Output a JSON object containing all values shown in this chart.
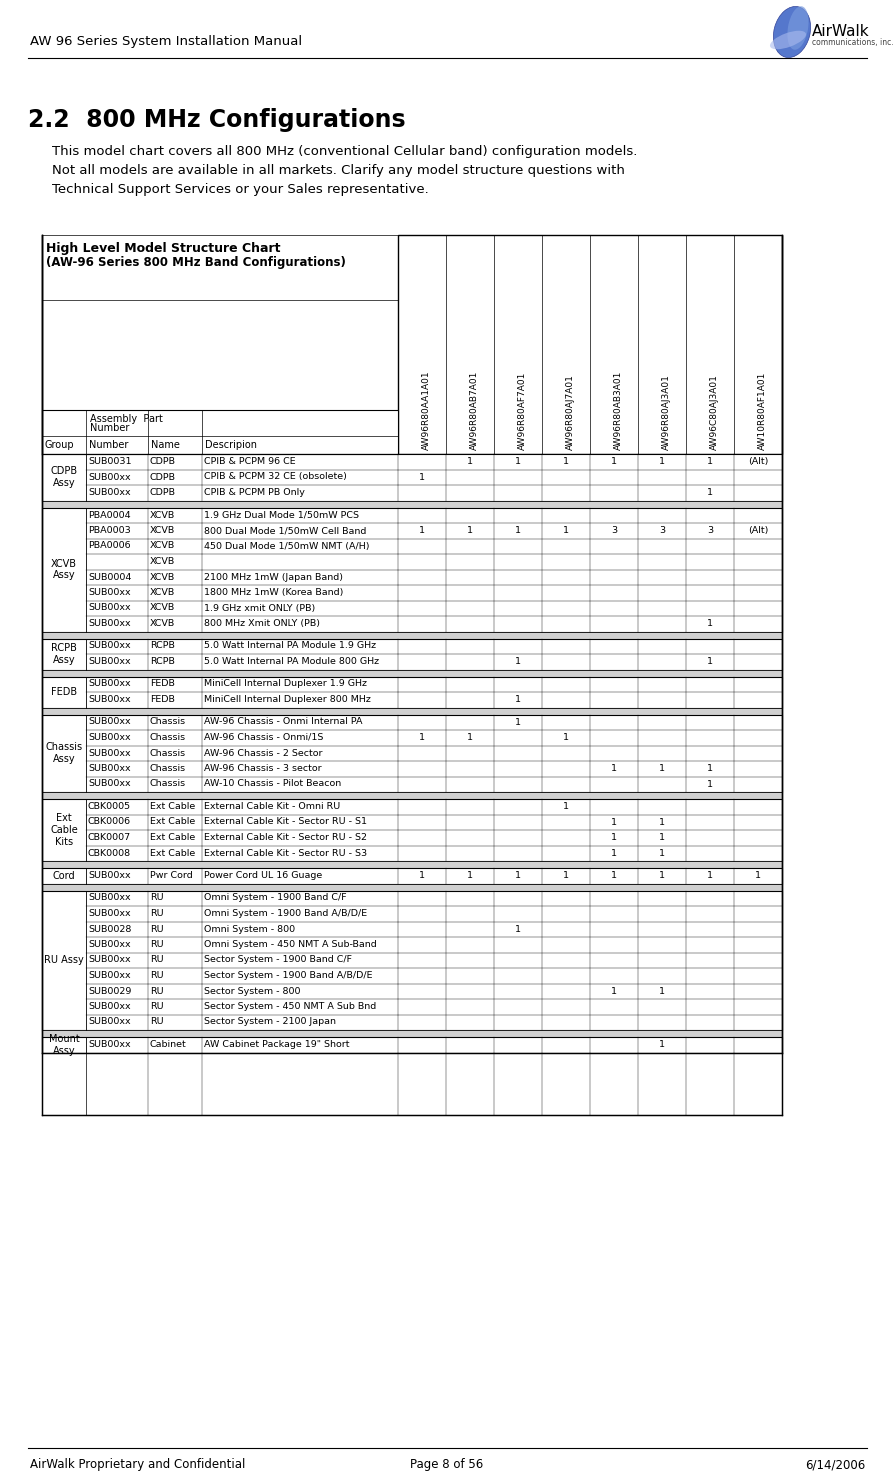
{
  "page_title": "AW 96 Series System Installation Manual",
  "section_title": "2.2  800 MHz Configurations",
  "section_body_lines": [
    "This model chart covers all 800 MHz (conventional Cellular band) configuration models.",
    "Not all models are available in all markets. Clarify any model structure questions with",
    "Technical Support Services or your Sales representative."
  ],
  "chart_title_line1": "High Level Model Structure Chart",
  "chart_title_line2": "(AW-96 Series 800 MHz Band Configurations)",
  "footer_left": "AirWalk Proprietary and Confidential",
  "footer_center": "Page 8 of 56",
  "footer_right": "6/14/2006",
  "model_columns": [
    "AW96R80AA1A01",
    "AW96R80AB7A01",
    "AW96R80AF7A01",
    "AW96R80AJ7A01",
    "AW96R80AB3A01",
    "AW96R80AJ3A01",
    "AW96C80AJ3A01",
    "AW10R80AF1A01"
  ],
  "row_groups": [
    {
      "group": "CDPB\nAssy",
      "rows": [
        {
          "part": "SUB0031",
          "name": "CDPB",
          "desc": "CPIB & PCPM 96 CE",
          "vals": [
            "",
            "1",
            "1",
            "1",
            "1",
            "1",
            "1",
            "(Alt)"
          ]
        },
        {
          "part": "SUB00xx",
          "name": "CDPB",
          "desc": "CPIB & PCPM 32 CE (obsolete)",
          "vals": [
            "1",
            "",
            "",
            "",
            "",
            "",
            "",
            ""
          ]
        },
        {
          "part": "SUB00xx",
          "name": "CDPB",
          "desc": "CPIB & PCPM PB Only",
          "vals": [
            "",
            "",
            "",
            "",
            "",
            "",
            "1",
            ""
          ]
        }
      ]
    },
    {
      "group": "XCVB\nAssy",
      "rows": [
        {
          "part": "PBA0004",
          "name": "XCVB",
          "desc": "1.9 GHz Dual Mode 1/50mW PCS",
          "vals": [
            "",
            "",
            "",
            "",
            "",
            "",
            "",
            ""
          ]
        },
        {
          "part": "PBA0003",
          "name": "XCVB",
          "desc": "800 Dual Mode 1/50mW Cell Band",
          "vals": [
            "1",
            "1",
            "1",
            "1",
            "3",
            "3",
            "3",
            "(Alt)"
          ]
        },
        {
          "part": "PBA0006",
          "name": "XCVB",
          "desc": "450 Dual Mode 1/50mW NMT (A/H)",
          "vals": [
            "",
            "",
            "",
            "",
            "",
            "",
            "",
            ""
          ]
        },
        {
          "part": "",
          "name": "XCVB",
          "desc": "",
          "vals": [
            "",
            "",
            "",
            "",
            "",
            "",
            "",
            ""
          ]
        },
        {
          "part": "SUB0004",
          "name": "XCVB",
          "desc": "2100 MHz 1mW (Japan Band)",
          "vals": [
            "",
            "",
            "",
            "",
            "",
            "",
            "",
            ""
          ]
        },
        {
          "part": "SUB00xx",
          "name": "XCVB",
          "desc": "1800 MHz 1mW (Korea Band)",
          "vals": [
            "",
            "",
            "",
            "",
            "",
            "",
            "",
            ""
          ]
        },
        {
          "part": "SUB00xx",
          "name": "XCVB",
          "desc": "1.9 GHz xmit ONLY (PB)",
          "vals": [
            "",
            "",
            "",
            "",
            "",
            "",
            "",
            ""
          ]
        },
        {
          "part": "SUB00xx",
          "name": "XCVB",
          "desc": "800 MHz Xmit ONLY (PB)",
          "vals": [
            "",
            "",
            "",
            "",
            "",
            "",
            "1",
            ""
          ]
        }
      ]
    },
    {
      "group": "RCPB\nAssy",
      "rows": [
        {
          "part": "SUB00xx",
          "name": "RCPB",
          "desc": "5.0 Watt Internal PA Module 1.9 GHz",
          "vals": [
            "",
            "",
            "",
            "",
            "",
            "",
            "",
            ""
          ]
        },
        {
          "part": "SUB00xx",
          "name": "RCPB",
          "desc": "5.0 Watt Internal PA Module 800 GHz",
          "vals": [
            "",
            "",
            "1",
            "",
            "",
            "",
            "1",
            ""
          ]
        }
      ]
    },
    {
      "group": "FEDB",
      "rows": [
        {
          "part": "SUB00xx",
          "name": "FEDB",
          "desc": "MiniCell Internal Duplexer 1.9 GHz",
          "vals": [
            "",
            "",
            "",
            "",
            "",
            "",
            "",
            ""
          ]
        },
        {
          "part": "SUB00xx",
          "name": "FEDB",
          "desc": "MiniCell Internal Duplexer 800 MHz",
          "vals": [
            "",
            "",
            "1",
            "",
            "",
            "",
            "",
            ""
          ]
        }
      ]
    },
    {
      "group": "Chassis\nAssy",
      "rows": [
        {
          "part": "SUB00xx",
          "name": "Chassis",
          "desc": "AW-96 Chassis - Onmi Internal PA",
          "vals": [
            "",
            "",
            "1",
            "",
            "",
            "",
            "",
            ""
          ]
        },
        {
          "part": "SUB00xx",
          "name": "Chassis",
          "desc": "AW-96 Chassis - Onmi/1S",
          "vals": [
            "1",
            "1",
            "",
            "1",
            "",
            "",
            "",
            ""
          ]
        },
        {
          "part": "SUB00xx",
          "name": "Chassis",
          "desc": "AW-96 Chassis - 2 Sector",
          "vals": [
            "",
            "",
            "",
            "",
            "",
            "",
            "",
            ""
          ]
        },
        {
          "part": "SUB00xx",
          "name": "Chassis",
          "desc": "AW-96 Chassis - 3 sector",
          "vals": [
            "",
            "",
            "",
            "",
            "1",
            "1",
            "1",
            ""
          ]
        },
        {
          "part": "SUB00xx",
          "name": "Chassis",
          "desc": "AW-10 Chassis - Pilot Beacon",
          "vals": [
            "",
            "",
            "",
            "",
            "",
            "",
            "1",
            ""
          ]
        }
      ]
    },
    {
      "group": "Ext\nCable\nKits",
      "rows": [
        {
          "part": "CBK0005",
          "name": "Ext Cable",
          "desc": "External Cable Kit - Omni RU",
          "vals": [
            "",
            "",
            "",
            "1",
            "",
            "",
            "",
            ""
          ]
        },
        {
          "part": "CBK0006",
          "name": "Ext Cable",
          "desc": "External Cable Kit - Sector RU - S1",
          "vals": [
            "",
            "",
            "",
            "",
            "1",
            "1",
            "",
            ""
          ]
        },
        {
          "part": "CBK0007",
          "name": "Ext Cable",
          "desc": "External Cable Kit - Sector RU - S2",
          "vals": [
            "",
            "",
            "",
            "",
            "1",
            "1",
            "",
            ""
          ]
        },
        {
          "part": "CBK0008",
          "name": "Ext Cable",
          "desc": "External Cable Kit - Sector RU - S3",
          "vals": [
            "",
            "",
            "",
            "",
            "1",
            "1",
            "",
            ""
          ]
        }
      ]
    },
    {
      "group": "Cord",
      "rows": [
        {
          "part": "SUB00xx",
          "name": "Pwr Cord",
          "desc": "Power Cord UL 16 Guage",
          "vals": [
            "1",
            "1",
            "1",
            "1",
            "1",
            "1",
            "1",
            "1"
          ]
        }
      ]
    },
    {
      "group": "RU Assy",
      "rows": [
        {
          "part": "SUB00xx",
          "name": "RU",
          "desc": "Omni System - 1900 Band C/F",
          "vals": [
            "",
            "",
            "",
            "",
            "",
            "",
            "",
            ""
          ]
        },
        {
          "part": "SUB00xx",
          "name": "RU",
          "desc": "Omni System - 1900 Band A/B/D/E",
          "vals": [
            "",
            "",
            "",
            "",
            "",
            "",
            "",
            ""
          ]
        },
        {
          "part": "SUB0028",
          "name": "RU",
          "desc": "Omni System - 800",
          "vals": [
            "",
            "",
            "1",
            "",
            "",
            "",
            "",
            ""
          ]
        },
        {
          "part": "SUB00xx",
          "name": "RU",
          "desc": "Omni System - 450 NMT A Sub-Band",
          "vals": [
            "",
            "",
            "",
            "",
            "",
            "",
            "",
            ""
          ]
        },
        {
          "part": "SUB00xx",
          "name": "RU",
          "desc": "Sector System - 1900 Band C/F",
          "vals": [
            "",
            "",
            "",
            "",
            "",
            "",
            "",
            ""
          ]
        },
        {
          "part": "SUB00xx",
          "name": "RU",
          "desc": "Sector System - 1900 Band A/B/D/E",
          "vals": [
            "",
            "",
            "",
            "",
            "",
            "",
            "",
            ""
          ]
        },
        {
          "part": "SUB0029",
          "name": "RU",
          "desc": "Sector System - 800",
          "vals": [
            "",
            "",
            "",
            "",
            "1",
            "1",
            "",
            ""
          ]
        },
        {
          "part": "SUB00xx",
          "name": "RU",
          "desc": "Sector System - 450 NMT A Sub Bnd",
          "vals": [
            "",
            "",
            "",
            "",
            "",
            "",
            "",
            ""
          ]
        },
        {
          "part": "SUB00xx",
          "name": "RU",
          "desc": "Sector System - 2100 Japan",
          "vals": [
            "",
            "",
            "",
            "",
            "",
            "",
            "",
            ""
          ]
        }
      ]
    },
    {
      "group": "Mount\nAssy",
      "rows": [
        {
          "part": "SUB00xx",
          "name": "Cabinet",
          "desc": "AW Cabinet Package 19\" Short",
          "vals": [
            "",
            "",
            "",
            "",
            "",
            "1",
            "",
            ""
          ]
        }
      ]
    }
  ],
  "bg_color": "#ffffff",
  "separator_bg": "#d0d0d0",
  "text_color": "#000000"
}
